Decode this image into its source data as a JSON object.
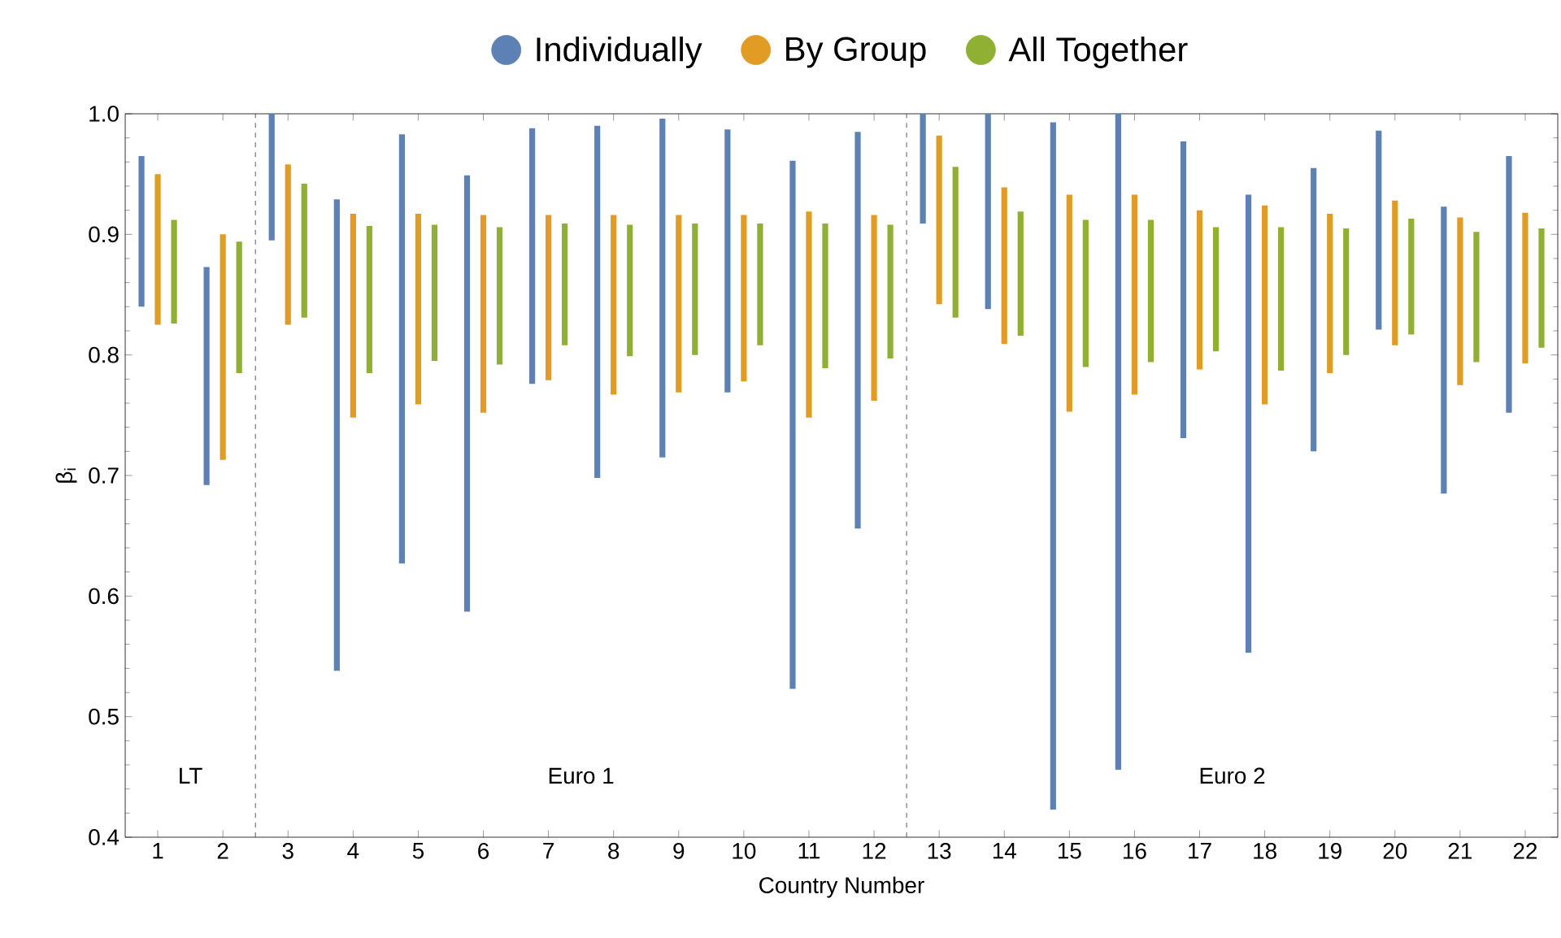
{
  "chart_data": {
    "type": "bar",
    "xlabel": "Country Number",
    "ylabel": "β$_{i}$",
    "x": [
      1,
      2,
      3,
      4,
      5,
      6,
      7,
      8,
      9,
      10,
      11,
      12,
      13,
      14,
      15,
      16,
      17,
      18,
      19,
      20,
      21,
      22
    ],
    "xlim": [
      0.5,
      22.5
    ],
    "xticks": [
      1,
      2,
      3,
      4,
      5,
      6,
      7,
      8,
      9,
      10,
      11,
      12,
      13,
      14,
      15,
      16,
      17,
      18,
      19,
      20,
      21,
      22
    ],
    "ylim": [
      0.4,
      1.0
    ],
    "yticks": [
      {
        "value": 0.4,
        "label": "0.4"
      },
      {
        "value": 0.5,
        "label": "0.5"
      },
      {
        "value": 0.6,
        "label": "0.6"
      },
      {
        "value": 0.7,
        "label": "0.7"
      },
      {
        "value": 0.8,
        "label": "0.8"
      },
      {
        "value": 0.9,
        "label": "0.9"
      },
      {
        "value": 1.0,
        "label": "1.0"
      }
    ],
    "series": [
      {
        "name": "Individually",
        "color": "#5e81b5",
        "base": [
          0.84,
          0.692,
          0.895,
          0.538,
          0.627,
          0.587,
          0.776,
          0.698,
          0.715,
          0.769,
          0.523,
          0.656,
          0.909,
          0.838,
          0.423,
          0.456,
          0.731,
          0.553,
          0.72,
          0.821,
          0.685,
          0.752
        ],
        "values": [
          0.125,
          0.181,
          0.105,
          0.391,
          0.356,
          0.362,
          0.212,
          0.292,
          0.281,
          0.218,
          0.438,
          0.329,
          0.091,
          0.162,
          0.57,
          0.544,
          0.246,
          0.38,
          0.235,
          0.165,
          0.238,
          0.213
        ]
      },
      {
        "name": "By Group",
        "color": "#e19c24",
        "base": [
          0.825,
          0.713,
          0.825,
          0.748,
          0.759,
          0.752,
          0.779,
          0.767,
          0.769,
          0.778,
          0.748,
          0.762,
          0.842,
          0.809,
          0.753,
          0.767,
          0.788,
          0.759,
          0.785,
          0.808,
          0.775,
          0.793
        ],
        "values": [
          0.125,
          0.187,
          0.133,
          0.169,
          0.158,
          0.164,
          0.137,
          0.149,
          0.147,
          0.138,
          0.171,
          0.154,
          0.14,
          0.13,
          0.18,
          0.166,
          0.132,
          0.165,
          0.132,
          0.12,
          0.139,
          0.125
        ]
      },
      {
        "name": "All Together",
        "color": "#8fb032",
        "base": [
          0.826,
          0.785,
          0.831,
          0.785,
          0.795,
          0.792,
          0.808,
          0.799,
          0.8,
          0.808,
          0.789,
          0.797,
          0.831,
          0.816,
          0.79,
          0.794,
          0.803,
          0.787,
          0.8,
          0.817,
          0.794,
          0.806
        ],
        "values": [
          0.086,
          0.109,
          0.111,
          0.122,
          0.113,
          0.114,
          0.101,
          0.109,
          0.109,
          0.101,
          0.12,
          0.111,
          0.125,
          0.103,
          0.122,
          0.118,
          0.103,
          0.119,
          0.105,
          0.096,
          0.108,
          0.099
        ]
      }
    ],
    "ref_lines": [
      {
        "axis": "x",
        "value": 2.5,
        "line_style": "dashed",
        "color": "#333333"
      },
      {
        "axis": "x",
        "value": 12.5,
        "line_style": "dashed",
        "color": "#333333"
      }
    ],
    "annotations": [
      "LT",
      "Euro 1",
      "Euro 2"
    ],
    "legend": "top",
    "grid": false
  }
}
